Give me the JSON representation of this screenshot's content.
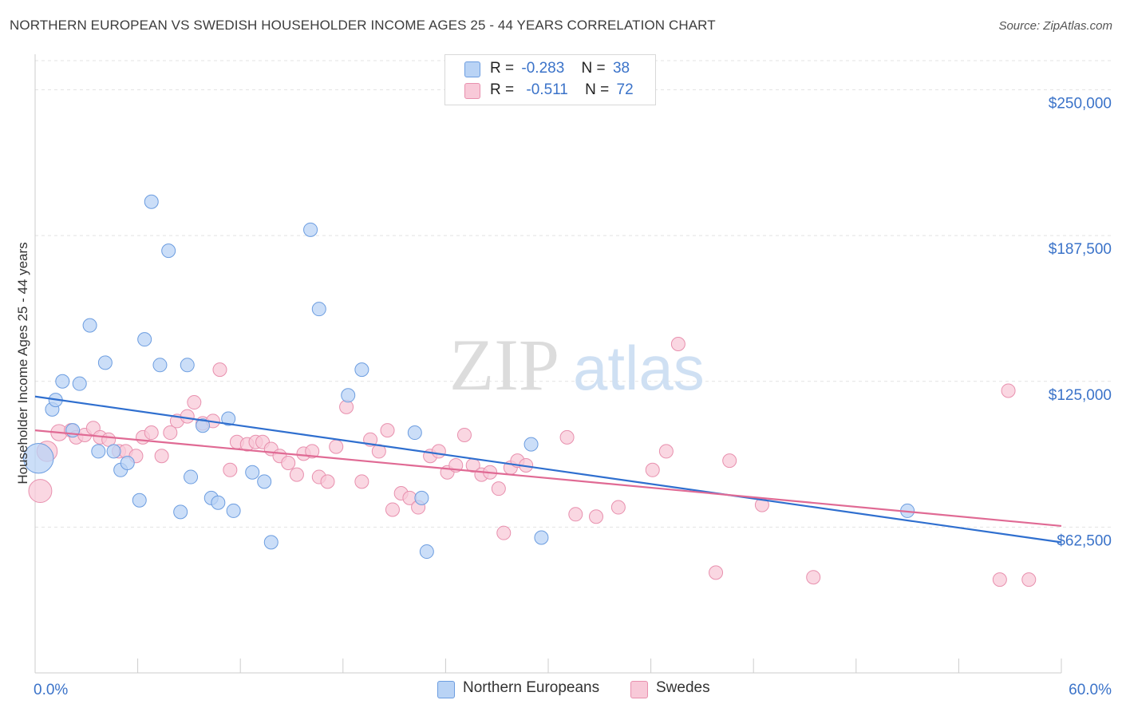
{
  "title": "NORTHERN EUROPEAN VS SWEDISH HOUSEHOLDER INCOME AGES 25 - 44 YEARS CORRELATION CHART",
  "source": "Source: ZipAtlas.com",
  "watermark": {
    "zip": "ZIP",
    "atlas": "atlas"
  },
  "legend_top": {
    "rows": [
      {
        "r_label": "R =",
        "r_value": "-0.283",
        "n_label": "N =",
        "n_value": "38"
      },
      {
        "r_label": "R =",
        "r_value": "-0.511",
        "n_label": "N =",
        "n_value": "72"
      }
    ]
  },
  "legend_bottom": {
    "items": [
      "Northern Europeans",
      "Swedes"
    ]
  },
  "colors": {
    "blue_fill": "#b9d3f5",
    "blue_stroke": "#6c9de0",
    "blue_line": "#2f6fcf",
    "pink_fill": "#f8c9d8",
    "pink_stroke": "#e890ae",
    "pink_line": "#e06a94",
    "axis_label": "#3b73c9",
    "grid": "#e3e3e3"
  },
  "chart_data": {
    "type": "scatter",
    "title": "NORTHERN EUROPEAN VS SWEDISH HOUSEHOLDER INCOME AGES 25 - 44 YEARS CORRELATION CHART",
    "xlabel": "",
    "ylabel": "Householder Income Ages 25 - 44 years",
    "xlim": [
      0,
      60
    ],
    "ylim": [
      0,
      262500
    ],
    "x_tick_labels": [
      "0.0%",
      "60.0%"
    ],
    "y_ticks": [
      62500,
      125000,
      187500,
      250000
    ],
    "y_tick_labels": [
      "$62,500",
      "$125,000",
      "$187,500",
      "$250,000"
    ],
    "grid": true,
    "legend_position": "top-center",
    "series": [
      {
        "name": "Northern Europeans",
        "trend": [
          [
            0,
            118500
          ],
          [
            60,
            56000
          ]
        ],
        "points": [
          [
            0.2,
            92000,
            2.2
          ],
          [
            1.0,
            113000,
            1
          ],
          [
            1.2,
            117000,
            1
          ],
          [
            1.6,
            125000,
            1
          ],
          [
            2.2,
            104000,
            1
          ],
          [
            2.6,
            124000,
            1
          ],
          [
            3.2,
            149000,
            1
          ],
          [
            3.7,
            95000,
            1
          ],
          [
            4.1,
            133000,
            1
          ],
          [
            4.6,
            95000,
            1
          ],
          [
            5.0,
            87000,
            1
          ],
          [
            5.4,
            90000,
            1
          ],
          [
            6.1,
            74000,
            1
          ],
          [
            6.4,
            143000,
            1
          ],
          [
            6.8,
            202000,
            1
          ],
          [
            7.3,
            132000,
            1
          ],
          [
            7.8,
            181000,
            1
          ],
          [
            8.5,
            69000,
            1
          ],
          [
            8.9,
            132000,
            1
          ],
          [
            9.1,
            84000,
            1
          ],
          [
            9.8,
            106000,
            1
          ],
          [
            10.3,
            75000,
            1
          ],
          [
            10.7,
            73000,
            1
          ],
          [
            11.3,
            109000,
            1
          ],
          [
            11.6,
            69500,
            1
          ],
          [
            12.7,
            86000,
            1
          ],
          [
            13.4,
            82000,
            1
          ],
          [
            13.8,
            56000,
            1
          ],
          [
            16.1,
            190000,
            1
          ],
          [
            16.6,
            156000,
            1
          ],
          [
            18.3,
            119000,
            1
          ],
          [
            19.1,
            130000,
            1
          ],
          [
            22.2,
            103000,
            1
          ],
          [
            22.6,
            75000,
            1
          ],
          [
            22.9,
            52000,
            1
          ],
          [
            29.0,
            98000,
            1
          ],
          [
            29.6,
            58000,
            1
          ],
          [
            51.0,
            69500,
            1
          ]
        ]
      },
      {
        "name": "Swedes",
        "trend": [
          [
            0,
            104000
          ],
          [
            60,
            63000
          ]
        ],
        "points": [
          [
            0.3,
            78000,
            1.7
          ],
          [
            0.7,
            95000,
            1.5
          ],
          [
            1.4,
            103000,
            1.2
          ],
          [
            2.1,
            104000,
            1
          ],
          [
            2.4,
            101000,
            1
          ],
          [
            2.9,
            102000,
            1
          ],
          [
            3.4,
            105000,
            1
          ],
          [
            3.8,
            101000,
            1
          ],
          [
            4.3,
            100000,
            1
          ],
          [
            4.9,
            95000,
            1
          ],
          [
            5.3,
            95000,
            1
          ],
          [
            5.9,
            93000,
            1
          ],
          [
            6.3,
            101000,
            1
          ],
          [
            6.8,
            103000,
            1
          ],
          [
            7.4,
            93000,
            1
          ],
          [
            7.9,
            103000,
            1
          ],
          [
            8.3,
            108000,
            1
          ],
          [
            8.9,
            110000,
            1
          ],
          [
            9.3,
            116000,
            1
          ],
          [
            9.8,
            107000,
            1
          ],
          [
            10.4,
            108000,
            1
          ],
          [
            10.8,
            130000,
            1
          ],
          [
            11.4,
            87000,
            1
          ],
          [
            11.8,
            99000,
            1
          ],
          [
            12.4,
            98000,
            1
          ],
          [
            12.9,
            99000,
            1
          ],
          [
            13.3,
            99000,
            1
          ],
          [
            13.8,
            96000,
            1
          ],
          [
            14.3,
            93000,
            1
          ],
          [
            14.8,
            90000,
            1
          ],
          [
            15.3,
            85000,
            1
          ],
          [
            15.7,
            94000,
            1
          ],
          [
            16.2,
            95000,
            1
          ],
          [
            16.6,
            84000,
            1
          ],
          [
            17.1,
            82000,
            1
          ],
          [
            17.6,
            97000,
            1
          ],
          [
            18.2,
            114000,
            1
          ],
          [
            19.1,
            82000,
            1
          ],
          [
            19.6,
            100000,
            1
          ],
          [
            20.1,
            95000,
            1
          ],
          [
            20.6,
            104000,
            1
          ],
          [
            20.9,
            70000,
            1
          ],
          [
            21.4,
            77000,
            1
          ],
          [
            21.9,
            75000,
            1
          ],
          [
            22.4,
            71000,
            1
          ],
          [
            23.1,
            93000,
            1
          ],
          [
            23.6,
            95000,
            1
          ],
          [
            24.1,
            86000,
            1
          ],
          [
            24.6,
            89000,
            1
          ],
          [
            25.1,
            102000,
            1
          ],
          [
            25.6,
            89000,
            1
          ],
          [
            26.1,
            85000,
            1
          ],
          [
            26.6,
            86000,
            1
          ],
          [
            27.1,
            79000,
            1
          ],
          [
            27.4,
            60000,
            1
          ],
          [
            27.8,
            88000,
            1
          ],
          [
            28.2,
            91000,
            1
          ],
          [
            28.7,
            89000,
            1
          ],
          [
            31.1,
            101000,
            1
          ],
          [
            31.6,
            68000,
            1
          ],
          [
            32.8,
            67000,
            1
          ],
          [
            34.1,
            71000,
            1
          ],
          [
            36.1,
            87000,
            1
          ],
          [
            36.9,
            95000,
            1
          ],
          [
            37.6,
            141000,
            1
          ],
          [
            39.8,
            43000,
            1
          ],
          [
            40.6,
            91000,
            1
          ],
          [
            42.5,
            72000,
            1
          ],
          [
            45.5,
            41000,
            1
          ],
          [
            56.9,
            121000,
            1
          ],
          [
            56.4,
            40000,
            1
          ],
          [
            58.1,
            40000,
            1
          ]
        ]
      }
    ]
  }
}
